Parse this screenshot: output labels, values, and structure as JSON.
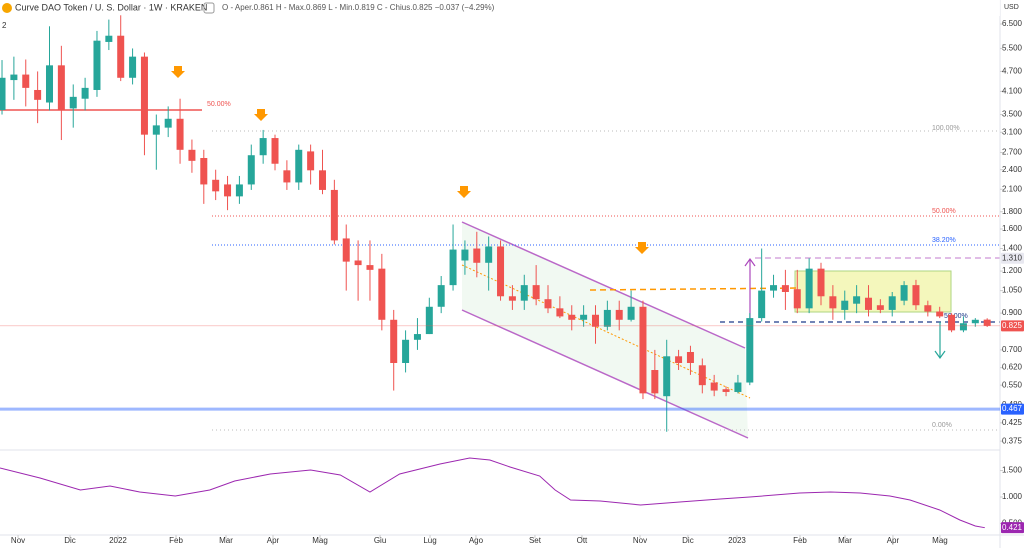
{
  "chart_data": {
    "type": "candlestick",
    "title": "Curve DAO Token / U. S. Dollar · 1W · KRAKEN",
    "legend_text": "O - Aper.0.861  H - Max.0.869  L - Min.0.819  C - Chius.0.825  −0.037 (−4.29%)",
    "currency": "USD",
    "pane_count": "2",
    "log_scale": true,
    "up_color": "#26a69a",
    "down_color": "#ef5350",
    "open": [
      3.61,
      4.43,
      4.6,
      4.14,
      3.8,
      4.9,
      3.65,
      3.9,
      4.14,
      5.75,
      6.0,
      4.5,
      5.2,
      3.05,
      3.2,
      3.4,
      2.75,
      2.6,
      2.24,
      2.17,
      2.0,
      2.17,
      2.65,
      2.98,
      2.39,
      2.2,
      2.72,
      2.39,
      2.09,
      1.5,
      1.29,
      1.25,
      1.22,
      0.86,
      0.64,
      0.75,
      0.78,
      0.94,
      1.09,
      1.29,
      1.4,
      1.27,
      1.42,
      1.01,
      0.98,
      1.09,
      0.99,
      0.93,
      0.89,
      0.86,
      0.89,
      0.82,
      0.92,
      0.86,
      0.94,
      0.61,
      0.51,
      0.67,
      0.69,
      0.63,
      0.56,
      0.535,
      0.525,
      0.56,
      0.87,
      1.05,
      1.09,
      1.06,
      0.93,
      1.22,
      1.01,
      0.92,
      0.96,
      1.0,
      0.95,
      0.92,
      0.98,
      1.09,
      0.95,
      0.91,
      0.89,
      0.8,
      0.84,
      0.861
    ],
    "high": [
      5.08,
      5.2,
      5.1,
      4.7,
      6.4,
      5.6,
      4.3,
      4.5,
      6.2,
      6.7,
      6.9,
      5.5,
      5.35,
      3.5,
      3.7,
      3.9,
      2.95,
      2.75,
      2.4,
      2.3,
      2.3,
      2.85,
      3.15,
      3.05,
      2.56,
      2.85,
      2.85,
      2.75,
      2.24,
      1.65,
      1.48,
      1.48,
      1.35,
      0.92,
      0.8,
      0.87,
      1.0,
      1.16,
      1.65,
      1.48,
      1.57,
      1.52,
      1.48,
      1.09,
      1.17,
      1.25,
      1.09,
      1.01,
      0.95,
      0.95,
      0.95,
      0.98,
      0.98,
      1.05,
      0.98,
      0.7,
      0.75,
      0.7,
      0.72,
      0.66,
      0.59,
      0.545,
      0.59,
      0.9,
      1.4,
      1.17,
      1.21,
      1.21,
      1.31,
      1.27,
      1.09,
      1.05,
      1.09,
      1.09,
      0.99,
      1.04,
      1.12,
      1.13,
      0.98,
      0.94,
      0.9,
      0.88,
      0.87,
      0.869
    ],
    "low": [
      3.5,
      3.87,
      3.7,
      3.3,
      3.6,
      2.94,
      3.2,
      3.6,
      3.95,
      5.44,
      4.4,
      4.3,
      2.65,
      2.4,
      3.0,
      2.5,
      2.35,
      1.9,
      1.95,
      1.82,
      1.9,
      2.09,
      2.5,
      2.39,
      2.09,
      2.09,
      2.17,
      2.03,
      1.44,
      1.05,
      0.98,
      0.98,
      0.8,
      0.53,
      0.6,
      0.7,
      0.78,
      0.9,
      1.05,
      1.17,
      1.15,
      1.05,
      0.98,
      0.92,
      0.92,
      0.95,
      0.9,
      0.87,
      0.8,
      0.82,
      0.73,
      0.8,
      0.8,
      0.85,
      0.5,
      0.5,
      0.4,
      0.61,
      0.59,
      0.52,
      0.51,
      0.51,
      0.52,
      0.55,
      0.85,
      1.0,
      0.92,
      0.9,
      0.9,
      0.95,
      0.86,
      0.86,
      0.9,
      0.88,
      0.9,
      0.88,
      0.95,
      0.92,
      0.88,
      0.87,
      0.79,
      0.79,
      0.82,
      0.819
    ],
    "close": [
      4.5,
      4.6,
      4.2,
      3.87,
      4.9,
      3.6,
      3.95,
      4.2,
      5.8,
      6.0,
      4.5,
      5.2,
      3.05,
      3.25,
      3.4,
      2.75,
      2.55,
      2.17,
      2.07,
      2.0,
      2.17,
      2.65,
      2.98,
      2.5,
      2.2,
      2.75,
      2.39,
      2.09,
      1.48,
      1.28,
      1.25,
      1.21,
      0.86,
      0.64,
      0.75,
      0.78,
      0.94,
      1.09,
      1.39,
      1.39,
      1.27,
      1.42,
      1.01,
      0.98,
      1.09,
      0.99,
      0.93,
      0.88,
      0.86,
      0.89,
      0.82,
      0.92,
      0.86,
      0.94,
      0.52,
      0.52,
      0.67,
      0.64,
      0.64,
      0.55,
      0.53,
      0.525,
      0.56,
      0.87,
      1.05,
      1.09,
      1.04,
      0.93,
      1.22,
      1.01,
      0.93,
      0.98,
      1.01,
      0.92,
      0.92,
      1.01,
      1.09,
      0.95,
      0.91,
      0.88,
      0.8,
      0.84,
      0.86,
      0.825
    ],
    "xlim": [
      -0.17,
      84.08
    ],
    "xticks": [
      {
        "value": 1.35,
        "label": "Nov"
      },
      {
        "value": 5.73,
        "label": "Dic"
      },
      {
        "value": 9.77,
        "label": "2022"
      },
      {
        "value": 14.66,
        "label": "Feb"
      },
      {
        "value": 18.87,
        "label": "Mar"
      },
      {
        "value": 22.83,
        "label": "Apr"
      },
      {
        "value": 26.79,
        "label": "Mag"
      },
      {
        "value": 31.85,
        "label": "Giu"
      },
      {
        "value": 36.06,
        "label": "Lug"
      },
      {
        "value": 39.93,
        "label": "Ago"
      },
      {
        "value": 44.9,
        "label": "Set"
      },
      {
        "value": 48.86,
        "label": "Ott"
      },
      {
        "value": 53.75,
        "label": "Nov"
      },
      {
        "value": 57.79,
        "label": "Dic"
      },
      {
        "value": 61.92,
        "label": "2023"
      },
      {
        "value": 67.23,
        "label": "Feb"
      },
      {
        "value": 71.02,
        "label": "Mar"
      },
      {
        "value": 75.06,
        "label": "Apr"
      },
      {
        "value": 79.02,
        "label": "Mag"
      }
    ],
    "ylim": [
      0.353,
      7.66
    ],
    "yticks": [
      {
        "value": 6.5,
        "label": "6.500"
      },
      {
        "value": 5.5,
        "label": "5.500"
      },
      {
        "value": 4.7,
        "label": "4.700"
      },
      {
        "value": 4.1,
        "label": "4.100"
      },
      {
        "value": 3.5,
        "label": "3.500"
      },
      {
        "value": 3.1,
        "label": "3.100"
      },
      {
        "value": 2.7,
        "label": "2.700"
      },
      {
        "value": 2.4,
        "label": "2.400"
      },
      {
        "value": 2.1,
        "label": "2.100"
      },
      {
        "value": 1.8,
        "label": "1.800"
      },
      {
        "value": 1.6,
        "label": "1.600"
      },
      {
        "value": 1.4,
        "label": "1.400"
      },
      {
        "value": 1.2,
        "label": "1.200"
      },
      {
        "value": 1.05,
        "label": "1.050"
      },
      {
        "value": 0.9,
        "label": "0.900"
      },
      {
        "value": 0.7,
        "label": "0.700"
      },
      {
        "value": 0.62,
        "label": "0.620"
      },
      {
        "value": 0.55,
        "label": "0.550"
      },
      {
        "value": 0.48,
        "label": "0.480"
      },
      {
        "value": 0.425,
        "label": "0.425"
      },
      {
        "value": 0.375,
        "label": "0.375"
      }
    ],
    "price_labels": [
      {
        "value": 1.31,
        "label": "1.310",
        "color": "#e8e8f0",
        "text_color": "#333333",
        "line": false
      },
      {
        "value": 0.825,
        "color": "#ef5350",
        "text_color": "#ffffff",
        "line": true
      },
      {
        "value": 0.467,
        "color": "#2962ff",
        "text_color": "#ffffff",
        "line": true
      }
    ],
    "annotations": [
      "50.00%",
      "100.00%",
      "50.00%",
      "38.20%",
      "50.00%",
      "0.00%"
    ],
    "indicator": {
      "type": "line",
      "color": "#9c27b0",
      "x": [
        -0.17,
        3.2,
        6.6,
        9.1,
        11.6,
        14.6,
        17.5,
        19.6,
        22.6,
        26.0,
        28.5,
        31.0,
        33.5,
        36.9,
        39.4,
        41.1,
        42.8,
        45.3,
        46.6,
        47.9,
        50.4,
        53.8,
        57.1,
        60.5,
        63.0,
        67.2,
        69.8,
        72.3,
        74.8,
        76.5,
        79.0,
        80.7,
        82.0,
        82.8
      ],
      "values": [
        1.547,
        1.358,
        1.132,
        1.208,
        1.094,
        1.019,
        1.132,
        1.302,
        1.434,
        1.509,
        1.415,
        1.094,
        1.434,
        1.623,
        1.736,
        1.698,
        1.566,
        1.396,
        1.132,
        0.943,
        0.925,
        0.849,
        0.906,
        0.962,
        1.0,
        1.075,
        1.094,
        1.075,
        1.019,
        0.943,
        0.755,
        0.566,
        0.453,
        0.421
      ],
      "ylim": [
        0.283,
        1.849
      ],
      "yticks": [
        {
          "value": 1.5,
          "label": "1.500"
        },
        {
          "value": 1.0,
          "label": "1.000"
        },
        {
          "value": 0.5,
          "label": "0.500"
        }
      ]
    }
  }
}
